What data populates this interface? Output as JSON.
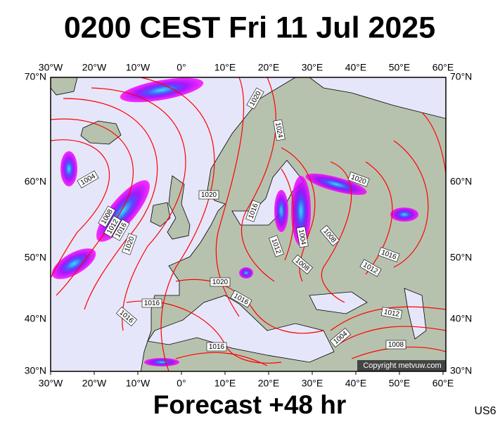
{
  "title": "0200 CEST Fri 11 Jul 2025",
  "map": {
    "lon_labels": [
      "30°W",
      "20°W",
      "10°W",
      "0°",
      "10°E",
      "20°E",
      "30°E",
      "40°E",
      "50°E",
      "60°E"
    ],
    "lat_labels": [
      "70°N",
      "60°N",
      "50°N",
      "40°N",
      "30°N"
    ],
    "isobar_labels": [
      "1020",
      "1024",
      "1004",
      "1020",
      "1020",
      "1008",
      "1012",
      "1016",
      "1020",
      "1016",
      "1012",
      "1004",
      "1008",
      "1008",
      "1016",
      "1012",
      "1020",
      "1016",
      "1016",
      "1016",
      "1012",
      "1004",
      "1008",
      "1016"
    ]
  },
  "copyright": "Copyright metvuw.com",
  "footer": "Forecast +48 hr",
  "code": "US6"
}
